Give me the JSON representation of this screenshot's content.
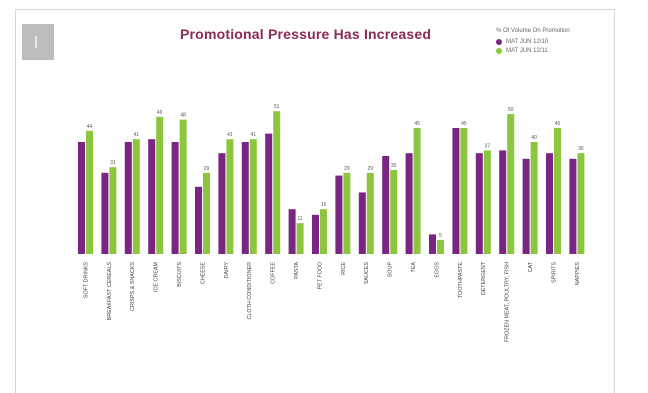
{
  "page": {
    "title": "Promotional Pressure Has Increased",
    "colors": {
      "title": "#8a2a55",
      "series_2010": "#7b2582",
      "series_2011": "#8cc63f"
    }
  },
  "chart_data": {
    "type": "bar",
    "title": "Promotional Pressure Has Increased",
    "legend_title": "% Of Volume On Promotion",
    "legend_position": "top-right",
    "xlabel": "",
    "ylabel": "",
    "ylim": [
      0,
      55
    ],
    "grid": false,
    "categories": [
      "SOFT DRINKS",
      "BREAKFAST CEREALS",
      "CRISPS & SNACKS",
      "ICE CREAM",
      "BISCUITS",
      "CHEESE",
      "DAIRY",
      "CLOTH CONDITIONER",
      "COFFEE",
      "PASTA",
      "PET FOOD",
      "RICE",
      "SAUCES",
      "SOUP",
      "TEA",
      "EGGS",
      "TOOTHPASTE",
      "DETERGENT",
      "FROZEN MEAT, POULTRY, FISH",
      "CAT",
      "SPIRITS",
      "NAPPIES"
    ],
    "series": [
      {
        "name": "MAT JUN 12/10",
        "color": "#7b2582",
        "values": [
          40,
          29,
          40,
          41,
          40,
          24,
          36,
          40,
          43,
          16,
          14,
          28,
          22,
          35,
          36,
          7,
          45,
          36,
          37,
          34,
          36,
          34
        ]
      },
      {
        "name": "MAT JUN 12/11",
        "color": "#8cc63f",
        "values": [
          44,
          31,
          41,
          49,
          48,
          29,
          41,
          41,
          51,
          11,
          16,
          29,
          29,
          30,
          45,
          5,
          45,
          37,
          50,
          40,
          45,
          36
        ]
      }
    ],
    "data_labels_2010": [
      "",
      "",
      "",
      "",
      "",
      "",
      "",
      "",
      "",
      "",
      "",
      "",
      "",
      "",
      "",
      "",
      "",
      "",
      "",
      "",
      "",
      ""
    ],
    "data_labels_2011": [
      "44",
      "31",
      "41",
      "49",
      "48",
      "29",
      "41",
      "41",
      "51",
      "11",
      "16",
      "29",
      "29",
      "30",
      "45",
      "5",
      "45",
      "37",
      "50",
      "40",
      "45",
      "36"
    ]
  }
}
